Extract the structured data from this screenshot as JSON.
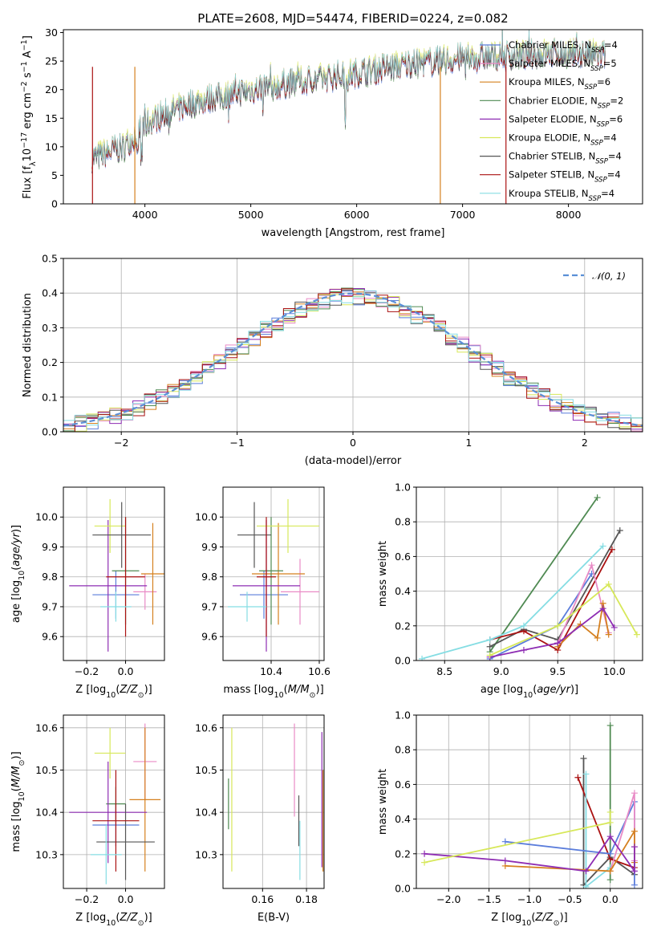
{
  "figure_title": "PLATE=2608, MJD=54474, FIBERID=0224, z=0.082",
  "colors": {
    "Chabrier MILES": "#5b7ddb",
    "Salpeter MILES": "#e98bc6",
    "Kroupa MILES": "#d5801f",
    "Chabrier ELODIE": "#4f8a52",
    "Salpeter ELODIE": "#8e2db3",
    "Kroupa ELODIE": "#d7e85a",
    "Chabrier STELIB": "#555555",
    "Salpeter STELIB": "#aa1111",
    "Kroupa STELIB": "#85dde3"
  },
  "chart_data": [
    {
      "id": "spectrum",
      "type": "line",
      "xlabel": "wavelength [Angstrom, rest frame]",
      "ylabel_parts": [
        "Flux [f",
        "λ",
        "10",
        "−17",
        " erg cm",
        "−2",
        " s",
        "−1",
        " A",
        "−1",
        "]"
      ],
      "xlim": [
        3230,
        8700
      ],
      "ylim": [
        0,
        30.5
      ],
      "xticks": [
        4000,
        5000,
        6000,
        7000,
        8000
      ],
      "yticks": [
        0,
        5,
        10,
        15,
        20,
        25,
        30
      ],
      "legend_position": "upper-right",
      "series": [
        {
          "name": "Chabrier MILES",
          "nssp": "4"
        },
        {
          "name": "Salpeter MILES",
          "nssp": "5"
        },
        {
          "name": "Kroupa MILES",
          "nssp": "6"
        },
        {
          "name": "Chabrier ELODIE",
          "nssp": "2"
        },
        {
          "name": "Salpeter ELODIE",
          "nssp": "6"
        },
        {
          "name": "Kroupa ELODIE",
          "nssp": "4"
        },
        {
          "name": "Chabrier STELIB",
          "nssp": "4"
        },
        {
          "name": "Salpeter STELIB",
          "nssp": "4"
        },
        {
          "name": "Kroupa STELIB",
          "nssp": "4"
        }
      ],
      "trend": {
        "x": [
          3500,
          3800,
          4000,
          4200,
          4500,
          5000,
          5500,
          6000,
          6500,
          7000,
          7500,
          8000,
          8350
        ],
        "y": [
          8,
          10,
          14,
          16,
          18,
          20,
          21.5,
          23,
          24.5,
          25.5,
          26,
          26.5,
          26
        ]
      }
    },
    {
      "id": "residuals",
      "type": "histogram",
      "xlabel": "(data-model)/error",
      "ylabel": "Normed distribution",
      "xlim": [
        -2.5,
        2.5
      ],
      "ylim": [
        0,
        0.5
      ],
      "xticks": [
        -2,
        -1,
        0,
        1,
        2
      ],
      "yticks": [
        0,
        0.1,
        0.2,
        0.3,
        0.4,
        0.5
      ],
      "legend": "𝒩(0, 1)",
      "legend_position": "upper-right",
      "reference_curve": "normal(0,1)"
    },
    {
      "id": "age_vs_Z",
      "type": "errorbar",
      "xlabel": "Z [log10(Z/Z⊙)]",
      "ylabel": "age  [log10(age/yr)]",
      "xlim": [
        -0.32,
        0.2
      ],
      "ylim": [
        9.52,
        10.1
      ],
      "xticks": [
        -0.2,
        0.0
      ],
      "yticks": [
        9.6,
        9.7,
        9.8,
        9.9,
        10.0
      ],
      "points": [
        {
          "s": "Chabrier MILES",
          "x": -0.05,
          "xe": 0.12,
          "y": 9.74,
          "ye": 0.08
        },
        {
          "s": "Salpeter MILES",
          "x": 0.1,
          "xe": 0.06,
          "y": 9.75,
          "ye": 0.06
        },
        {
          "s": "Kroupa MILES",
          "x": 0.14,
          "xe": 0.06,
          "y": 9.81,
          "ye": 0.17
        },
        {
          "s": "Chabrier ELODIE",
          "x": 0.0,
          "xe": 0.07,
          "y": 9.82,
          "ye": 0.18
        },
        {
          "s": "Salpeter ELODIE",
          "x": -0.09,
          "xe": 0.2,
          "y": 9.77,
          "ye": 0.22
        },
        {
          "s": "Kroupa ELODIE",
          "x": -0.08,
          "xe": 0.08,
          "y": 9.97,
          "ye": 0.09
        },
        {
          "s": "Chabrier STELIB",
          "x": -0.02,
          "xe": 0.15,
          "y": 9.94,
          "ye": 0.11
        },
        {
          "s": "Salpeter STELIB",
          "x": 0.0,
          "xe": 0.1,
          "y": 9.8,
          "ye": 0.2
        },
        {
          "s": "Kroupa STELIB",
          "x": -0.05,
          "xe": 0.08,
          "y": 9.7,
          "ye": 0.05
        }
      ]
    },
    {
      "id": "age_vs_mass",
      "type": "errorbar",
      "xlabel": "mass [log10(M/M⊙)]",
      "ylabel": "",
      "xlim": [
        10.2,
        10.62
      ],
      "ylim": [
        9.52,
        10.1
      ],
      "xticks": [
        10.4,
        10.6
      ],
      "yticks": [
        9.6,
        9.7,
        9.8,
        9.9,
        10.0
      ],
      "points": [
        {
          "s": "Chabrier MILES",
          "x": 10.37,
          "xe": 0.1,
          "y": 9.74,
          "ye": 0.08
        },
        {
          "s": "Salpeter MILES",
          "x": 10.52,
          "xe": 0.08,
          "y": 9.75,
          "ye": 0.11
        },
        {
          "s": "Kroupa MILES",
          "x": 10.43,
          "xe": 0.11,
          "y": 9.81,
          "ye": 0.17
        },
        {
          "s": "Chabrier ELODIE",
          "x": 10.4,
          "xe": 0.05,
          "y": 9.82,
          "ye": 0.18
        },
        {
          "s": "Salpeter ELODIE",
          "x": 10.38,
          "xe": 0.14,
          "y": 9.77,
          "ye": 0.22
        },
        {
          "s": "Kroupa ELODIE",
          "x": 10.47,
          "xe": 0.13,
          "y": 9.97,
          "ye": 0.09
        },
        {
          "s": "Chabrier STELIB",
          "x": 10.33,
          "xe": 0.07,
          "y": 9.94,
          "ye": 0.11
        },
        {
          "s": "Salpeter STELIB",
          "x": 10.38,
          "xe": 0.04,
          "y": 9.8,
          "ye": 0.2
        },
        {
          "s": "Kroupa STELIB",
          "x": 10.3,
          "xe": 0.08,
          "y": 9.7,
          "ye": 0.05
        }
      ]
    },
    {
      "id": "massweight_vs_age",
      "type": "line",
      "xlabel": "age  [log10(age/yr)]",
      "ylabel": "mass weight",
      "xlim": [
        8.25,
        10.25
      ],
      "ylim": [
        0,
        1.0
      ],
      "xticks": [
        8.5,
        9.0,
        9.5,
        10.0
      ],
      "yticks": [
        0,
        0.2,
        0.4,
        0.6,
        0.8,
        1.0
      ],
      "series": [
        {
          "s": "Chabrier ELODIE",
          "x": [
            8.9,
            9.85
          ],
          "y": [
            0.05,
            0.94
          ]
        },
        {
          "s": "Chabrier STELIB",
          "x": [
            8.9,
            9.2,
            9.5,
            10.05
          ],
          "y": [
            0.08,
            0.18,
            0.12,
            0.75
          ]
        },
        {
          "s": "Salpeter STELIB",
          "x": [
            8.9,
            9.2,
            9.5,
            9.98
          ],
          "y": [
            0.12,
            0.17,
            0.06,
            0.64
          ]
        },
        {
          "s": "Kroupa STELIB",
          "x": [
            8.3,
            8.9,
            9.2,
            9.9
          ],
          "y": [
            0.01,
            0.12,
            0.2,
            0.66
          ]
        },
        {
          "s": "Chabrier MILES",
          "x": [
            8.9,
            9.5,
            9.8
          ],
          "y": [
            0.01,
            0.2,
            0.5
          ]
        },
        {
          "s": "Salpeter MILES",
          "x": [
            9.5,
            9.8,
            9.95
          ],
          "y": [
            0.1,
            0.55,
            0.16
          ]
        },
        {
          "s": "Kroupa MILES",
          "x": [
            9.5,
            9.7,
            9.85,
            9.9,
            9.95
          ],
          "y": [
            0.08,
            0.21,
            0.13,
            0.33,
            0.15
          ]
        },
        {
          "s": "Salpeter ELODIE",
          "x": [
            8.9,
            9.2,
            9.5,
            9.9,
            10.0
          ],
          "y": [
            0.02,
            0.06,
            0.1,
            0.3,
            0.19
          ]
        },
        {
          "s": "Kroupa ELODIE",
          "x": [
            8.9,
            9.5,
            9.95,
            10.2
          ],
          "y": [
            0.03,
            0.2,
            0.44,
            0.15
          ]
        }
      ]
    },
    {
      "id": "mass_vs_Z",
      "type": "errorbar",
      "xlabel": "Z [log10(Z/Z⊙)]",
      "ylabel": "mass [log10(M/M⊙)]",
      "xlim": [
        -0.32,
        0.2
      ],
      "ylim": [
        10.22,
        10.63
      ],
      "xticks": [
        -0.2,
        0.0
      ],
      "yticks": [
        10.3,
        10.4,
        10.5,
        10.6
      ],
      "points": [
        {
          "s": "Chabrier MILES",
          "x": -0.05,
          "xe": 0.12,
          "y": 10.37,
          "ye": 0.05
        },
        {
          "s": "Salpeter MILES",
          "x": 0.1,
          "xe": 0.06,
          "y": 10.52,
          "ye": 0.09
        },
        {
          "s": "Kroupa MILES",
          "x": 0.1,
          "xe": 0.08,
          "y": 10.43,
          "ye": 0.17
        },
        {
          "s": "Chabrier ELODIE",
          "x": -0.05,
          "xe": 0.05,
          "y": 10.42,
          "ye": 0.04
        },
        {
          "s": "Salpeter ELODIE",
          "x": -0.09,
          "xe": 0.2,
          "y": 10.4,
          "ye": 0.12
        },
        {
          "s": "Kroupa ELODIE",
          "x": -0.08,
          "xe": 0.08,
          "y": 10.54,
          "ye": 0.06
        },
        {
          "s": "Chabrier STELIB",
          "x": 0.0,
          "xe": 0.15,
          "y": 10.33,
          "ye": 0.09
        },
        {
          "s": "Salpeter STELIB",
          "x": -0.05,
          "xe": 0.12,
          "y": 10.38,
          "ye": 0.12
        },
        {
          "s": "Kroupa STELIB",
          "x": -0.1,
          "xe": 0.08,
          "y": 10.3,
          "ye": 0.07
        }
      ]
    },
    {
      "id": "mass_vs_EBV",
      "type": "errorbar",
      "xlabel": "E(B-V)",
      "ylabel": "",
      "xlim": [
        0.142,
        0.188
      ],
      "ylim": [
        10.22,
        10.63
      ],
      "xticks": [
        0.16,
        0.18
      ],
      "yticks": [
        10.3,
        10.4,
        10.5,
        10.6
      ],
      "points": [
        {
          "s": "Chabrier ELODIE",
          "x": 0.1445,
          "xe": 0,
          "y": 10.42,
          "ye": 0.06
        },
        {
          "s": "Kroupa ELODIE",
          "x": 0.146,
          "xe": 0,
          "y": 10.43,
          "ye": 0.17
        },
        {
          "s": "Salpeter MILES",
          "x": 0.1745,
          "xe": 0,
          "y": 10.5,
          "ye": 0.11
        },
        {
          "s": "Chabrier STELIB",
          "x": 0.1765,
          "xe": 0,
          "y": 10.38,
          "ye": 0.06
        },
        {
          "s": "Kroupa STELIB",
          "x": 0.177,
          "xe": 0,
          "y": 10.31,
          "ye": 0.07
        },
        {
          "s": "Salpeter ELODIE",
          "x": 0.187,
          "xe": 0,
          "y": 10.43,
          "ye": 0.16
        },
        {
          "s": "Kroupa MILES",
          "x": 0.1875,
          "xe": 0,
          "y": 10.38,
          "ye": 0.12
        }
      ]
    },
    {
      "id": "massweight_vs_Z",
      "type": "line",
      "xlabel": "Z [log10(Z/Z⊙)]",
      "ylabel": "mass weight",
      "xlim": [
        -2.4,
        0.4
      ],
      "ylim": [
        0,
        1.0
      ],
      "xticks": [
        -2.0,
        -1.5,
        -1.0,
        -0.5,
        0.0
      ],
      "yticks": [
        0,
        0.2,
        0.4,
        0.6,
        0.8,
        1.0
      ],
      "series": [
        {
          "s": "Chabrier ELODIE",
          "x": [
            0.0,
            0.0
          ],
          "y": [
            0.05,
            0.94
          ]
        },
        {
          "s": "Chabrier STELIB",
          "x": [
            -0.33,
            -0.33,
            0.0,
            0.3
          ],
          "y": [
            0.75,
            0.02,
            0.18,
            0.08
          ]
        },
        {
          "s": "Salpeter STELIB",
          "x": [
            -0.4,
            0.0,
            0.3
          ],
          "y": [
            0.64,
            0.17,
            0.12
          ]
        },
        {
          "s": "Kroupa STELIB",
          "x": [
            -0.3,
            -0.3,
            0.0
          ],
          "y": [
            0.66,
            0.01,
            0.12
          ]
        },
        {
          "s": "Chabrier MILES",
          "x": [
            -1.3,
            0.0,
            0.3,
            0.3
          ],
          "y": [
            0.27,
            0.2,
            0.5,
            0.02
          ]
        },
        {
          "s": "Salpeter MILES",
          "x": [
            0.0,
            0.3,
            0.3
          ],
          "y": [
            0.1,
            0.55,
            0.16
          ]
        },
        {
          "s": "Kroupa MILES",
          "x": [
            -1.3,
            0.0,
            0.3,
            0.3
          ],
          "y": [
            0.13,
            0.1,
            0.33,
            0.15
          ]
        },
        {
          "s": "Salpeter ELODIE",
          "x": [
            -2.3,
            -1.3,
            -0.3,
            0.0,
            0.3,
            0.3
          ],
          "y": [
            0.2,
            0.16,
            0.1,
            0.3,
            0.1,
            0.24
          ]
        },
        {
          "s": "Kroupa ELODIE",
          "x": [
            -2.3,
            0.0,
            0.0
          ],
          "y": [
            0.15,
            0.38,
            0.44
          ]
        }
      ]
    }
  ]
}
